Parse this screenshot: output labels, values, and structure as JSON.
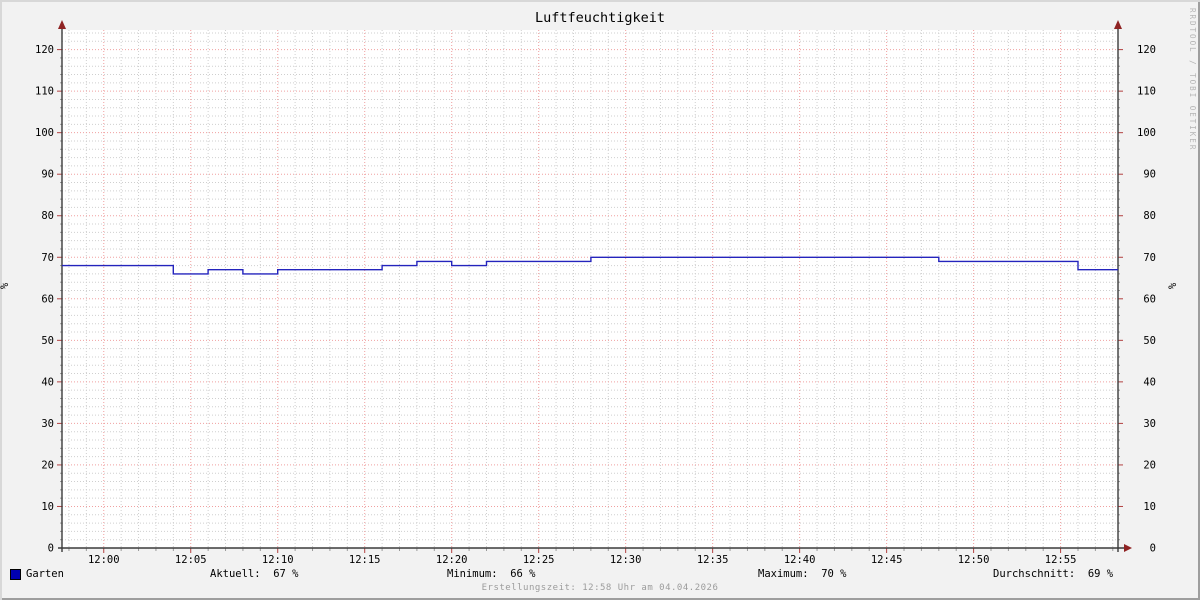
{
  "title": "Luftfeuchtigkeit",
  "watermark": "RRDTOOL / TOBI OETIKER",
  "footer": "Erstellungszeit: 12:58 Uhr am 04.04.2026",
  "legend": {
    "series_label": "Garten",
    "stats": [
      {
        "name": "aktuell",
        "label": "Aktuell:  67 %"
      },
      {
        "name": "minimum",
        "label": "Minimum:  66 %"
      },
      {
        "name": "maximum",
        "label": "Maximum:  70 %"
      },
      {
        "name": "durchschnitt",
        "label": "Durchschnitt:  69 %"
      }
    ]
  },
  "chart_data": {
    "type": "line",
    "title": "Luftfeuchtigkeit",
    "ylabel_left": "%",
    "ylabel_right": "%",
    "x_range_minutes_rel_1200": [
      -2.4,
      58.3
    ],
    "y_range": [
      0,
      125
    ],
    "x_ticks": [
      {
        "t": 0,
        "label": "12:00"
      },
      {
        "t": 5,
        "label": "12:05"
      },
      {
        "t": 10,
        "label": "12:10"
      },
      {
        "t": 15,
        "label": "12:15"
      },
      {
        "t": 20,
        "label": "12:20"
      },
      {
        "t": 25,
        "label": "12:25"
      },
      {
        "t": 30,
        "label": "12:30"
      },
      {
        "t": 35,
        "label": "12:35"
      },
      {
        "t": 40,
        "label": "12:40"
      },
      {
        "t": 45,
        "label": "12:45"
      },
      {
        "t": 50,
        "label": "12:50"
      },
      {
        "t": 55,
        "label": "12:55"
      }
    ],
    "y_ticks": [
      {
        "v": 0,
        "label": "0"
      },
      {
        "v": 10,
        "label": "10"
      },
      {
        "v": 20,
        "label": "20"
      },
      {
        "v": 30,
        "label": "30"
      },
      {
        "v": 40,
        "label": "40"
      },
      {
        "v": 50,
        "label": "50"
      },
      {
        "v": 60,
        "label": "60"
      },
      {
        "v": 70,
        "label": "70"
      },
      {
        "v": 80,
        "label": "80"
      },
      {
        "v": 90,
        "label": "90"
      },
      {
        "v": 100,
        "label": "100"
      },
      {
        "v": 110,
        "label": "110"
      },
      {
        "v": 120,
        "label": "120"
      }
    ],
    "grid": {
      "x_minor_step": 1,
      "x_major_step": 5,
      "y_minor_step": 2,
      "y_major_step": 10,
      "major_color": "#f0a0a0",
      "minor_color": "#cfcfcf"
    },
    "axis_color": "#3b3b3b",
    "arrow_color": "#8f2323",
    "tick_major_color": "#b24040",
    "tick_minor_color": "#999999",
    "canvas_color": "#ffffff",
    "background_color": "#f2f2f2",
    "series": [
      {
        "name": "Garten",
        "color": "#2424bd",
        "legend_color": "#0000b0",
        "unit": "%",
        "aktuell": 67,
        "minimum": 66,
        "maximum": 70,
        "durchschnitt": 69,
        "steps": [
          [
            -2.4,
            68
          ],
          [
            4,
            66
          ],
          [
            6,
            67
          ],
          [
            8,
            66
          ],
          [
            10,
            67
          ],
          [
            16,
            68
          ],
          [
            18,
            69
          ],
          [
            20,
            68
          ],
          [
            22,
            69
          ],
          [
            28,
            70
          ],
          [
            48,
            69
          ],
          [
            56,
            67
          ]
        ],
        "end_t": 58.3
      }
    ]
  }
}
